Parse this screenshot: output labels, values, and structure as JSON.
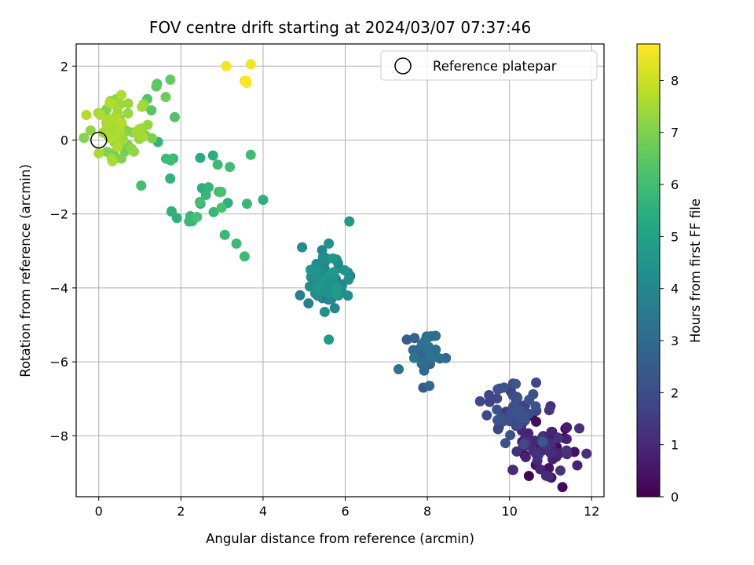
{
  "chart_data": {
    "type": "scatter",
    "title": "FOV centre drift starting at 2024/03/07 07:37:46",
    "xlabel": "Angular distance from reference (arcmin)",
    "ylabel": "Rotation from reference (arcmin)",
    "xlim": [
      -0.55,
      12.3
    ],
    "ylim": [
      -9.65,
      2.6
    ],
    "xticks": [
      "0",
      "2",
      "4",
      "6",
      "8",
      "10",
      "12"
    ],
    "yticks": [
      "−8",
      "−6",
      "−4",
      "−2",
      "0",
      "2"
    ],
    "xtick_values": [
      0,
      2,
      4,
      6,
      8,
      10,
      12
    ],
    "ytick_values": [
      -8,
      -6,
      -4,
      -2,
      0,
      2
    ],
    "grid": true,
    "legend": {
      "entries": [
        "Reference platepar"
      ],
      "placement": "top-right"
    },
    "reference_point": {
      "x": 0,
      "y": 0,
      "label": "Reference platepar"
    },
    "colorbar": {
      "label": "Hours from first FF file",
      "range": [
        0,
        8.7
      ],
      "ticks": [
        "0",
        "1",
        "2",
        "3",
        "4",
        "5",
        "6",
        "7",
        "8"
      ],
      "tick_values": [
        0,
        1,
        2,
        3,
        4,
        5,
        6,
        7,
        8
      ],
      "colormap": "viridis"
    },
    "clusters": [
      {
        "hours_range": [
          0.0,
          1.3
        ],
        "x_center": 10.8,
        "y_center": -8.3,
        "x_spread": 0.35,
        "y_spread": 0.4,
        "count": 70,
        "outliers": [
          [
            11.7,
            -7.8
          ],
          [
            11.65,
            -8.8
          ],
          [
            11.4,
            -8.5
          ],
          [
            10.95,
            -9.1
          ],
          [
            11.0,
            -7.2
          ]
        ]
      },
      {
        "hours_range": [
          1.3,
          2.4
        ],
        "x_center": 10.1,
        "y_center": -7.4,
        "x_spread": 0.35,
        "y_spread": 0.35,
        "count": 60,
        "outliers": [
          [
            9.5,
            -6.9
          ],
          [
            9.9,
            -8.2
          ],
          [
            10.15,
            -6.6
          ]
        ]
      },
      {
        "hours_range": [
          2.4,
          3.4
        ],
        "x_center": 7.95,
        "y_center": -5.75,
        "x_spread": 0.2,
        "y_spread": 0.25,
        "count": 35,
        "outliers": [
          [
            7.3,
            -6.2
          ],
          [
            8.45,
            -5.9
          ],
          [
            7.9,
            -6.7
          ],
          [
            8.05,
            -6.65
          ],
          [
            7.5,
            -5.4
          ]
        ]
      },
      {
        "hours_range": [
          3.6,
          4.7
        ],
        "x_center": 5.6,
        "y_center": -3.8,
        "x_spread": 0.25,
        "y_spread": 0.3,
        "count": 70,
        "outliers": [
          [
            6.1,
            -2.2
          ],
          [
            4.95,
            -2.9
          ],
          [
            5.6,
            -5.4
          ],
          [
            5.5,
            -4.65
          ],
          [
            4.9,
            -4.2
          ],
          [
            5.6,
            -2.8
          ]
        ]
      },
      {
        "hours_range": [
          5.3,
          6.2
        ],
        "x_center": 2.6,
        "y_center": -1.4,
        "x_spread": 0.5,
        "y_spread": 0.6,
        "count": 28,
        "outliers": [
          [
            3.7,
            -0.4
          ],
          [
            3.55,
            -3.15
          ],
          [
            2.2,
            -2.2
          ],
          [
            3.35,
            -2.8
          ],
          [
            1.75,
            -0.55
          ]
        ]
      },
      {
        "hours_range": [
          6.2,
          6.8
        ],
        "x_center": 1.4,
        "y_center": 1.0,
        "x_spread": 0.2,
        "y_spread": 0.3,
        "count": 4,
        "outliers": [
          [
            1.85,
            0.62
          ],
          [
            1.4,
            1.45
          ],
          [
            1.42,
            1.52
          ],
          [
            1.1,
            0.92
          ]
        ]
      },
      {
        "hours_range": [
          6.8,
          7.7
        ],
        "x_center": 0.45,
        "y_center": 0.35,
        "x_spread": 0.3,
        "y_spread": 0.35,
        "count": 75,
        "outliers": [
          [
            0.55,
            1.22
          ],
          [
            0.2,
            -0.32
          ],
          [
            0.55,
            -0.5
          ],
          [
            1.05,
            0.9
          ]
        ]
      },
      {
        "hours_range": [
          8.5,
          8.7
        ],
        "x_center": 3.4,
        "y_center": 1.8,
        "x_spread": 0.2,
        "y_spread": 0.15,
        "count": 0,
        "outliers": [
          [
            3.1,
            2.0
          ],
          [
            3.7,
            2.05
          ],
          [
            3.55,
            1.6
          ],
          [
            3.6,
            1.55
          ],
          [
            3.6,
            1.6
          ]
        ]
      }
    ]
  }
}
